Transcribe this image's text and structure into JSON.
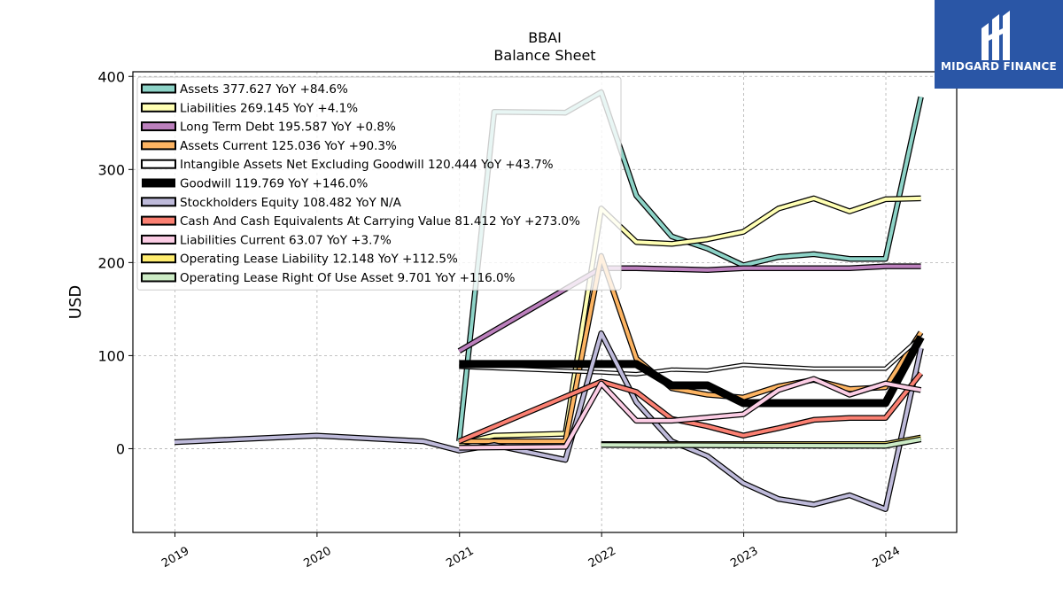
{
  "logo": {
    "text": "MIDGARD FINANCE"
  },
  "chart_data": {
    "type": "line",
    "title": "BBAI",
    "subtitle": "Balance  Sheet",
    "ylabel": "USD",
    "xlabel": "",
    "ylim": [
      -90,
      405
    ],
    "xlim": [
      "2018-09-15",
      "2024-07-01"
    ],
    "yticks": [
      0,
      100,
      200,
      300,
      400
    ],
    "xticks": [
      "2019",
      "2020",
      "2021",
      "2022",
      "2023",
      "2024"
    ],
    "grid": true,
    "legend_position": "top-left",
    "series": [
      {
        "name": "Assets  377.627 YoY +84.6%",
        "color": "#8dd3c7",
        "width": 4,
        "points": [
          [
            "2020-12-31",
            8
          ],
          [
            "2021-03-31",
            362
          ],
          [
            "2021-09-30",
            361
          ],
          [
            "2021-12-31",
            383
          ],
          [
            "2022-03-31",
            272
          ],
          [
            "2022-06-30",
            228
          ],
          [
            "2022-09-30",
            215
          ],
          [
            "2022-12-31",
            197
          ],
          [
            "2023-03-31",
            206
          ],
          [
            "2023-06-30",
            209
          ],
          [
            "2023-09-30",
            204
          ],
          [
            "2023-12-31",
            204
          ],
          [
            "2024-03-31",
            378
          ]
        ]
      },
      {
        "name": "Liabilities  269.145 YoY +4.1%",
        "color": "#ffffb3",
        "width": 4,
        "points": [
          [
            "2020-12-31",
            5
          ],
          [
            "2021-03-31",
            14
          ],
          [
            "2021-09-30",
            16
          ],
          [
            "2021-12-31",
            258
          ],
          [
            "2022-03-31",
            222
          ],
          [
            "2022-06-30",
            220
          ],
          [
            "2022-09-30",
            225
          ],
          [
            "2022-12-31",
            233
          ],
          [
            "2023-03-31",
            258
          ],
          [
            "2023-06-30",
            269
          ],
          [
            "2023-09-30",
            255
          ],
          [
            "2023-12-31",
            268
          ],
          [
            "2024-03-31",
            269
          ]
        ]
      },
      {
        "name": "Long Term Debt  195.587 YoY +0.8%",
        "color": "#bc80bd",
        "width": 4,
        "points": [
          [
            "2020-12-31",
            105
          ],
          [
            "2021-12-31",
            194
          ],
          [
            "2022-03-31",
            194
          ],
          [
            "2022-06-30",
            193
          ],
          [
            "2022-09-30",
            192
          ],
          [
            "2022-12-31",
            194
          ],
          [
            "2023-03-31",
            194
          ],
          [
            "2023-06-30",
            194
          ],
          [
            "2023-09-30",
            194
          ],
          [
            "2023-12-31",
            196
          ],
          [
            "2024-03-31",
            196
          ]
        ]
      },
      {
        "name": "Assets Current  125.036 YoY +90.3%",
        "color": "#fdb462",
        "width": 4,
        "points": [
          [
            "2020-12-31",
            8
          ],
          [
            "2021-09-30",
            8
          ],
          [
            "2021-12-31",
            207
          ],
          [
            "2022-03-31",
            97
          ],
          [
            "2022-06-30",
            65
          ],
          [
            "2022-09-30",
            58
          ],
          [
            "2022-12-31",
            55
          ],
          [
            "2023-03-31",
            67
          ],
          [
            "2023-06-30",
            74
          ],
          [
            "2023-09-30",
            64
          ],
          [
            "2023-12-31",
            66
          ],
          [
            "2024-03-31",
            125
          ]
        ]
      },
      {
        "name": "Intangible Assets Net Excluding Goodwill  120.444 YoY +43.7%",
        "color": "#ffffff",
        "width": 2.5,
        "points": [
          [
            "2020-12-31",
            88
          ],
          [
            "2021-12-31",
            82
          ],
          [
            "2022-03-31",
            80
          ],
          [
            "2022-06-30",
            85
          ],
          [
            "2022-09-30",
            84
          ],
          [
            "2022-12-31",
            90
          ],
          [
            "2023-03-31",
            88
          ],
          [
            "2023-06-30",
            86
          ],
          [
            "2023-09-30",
            86
          ],
          [
            "2023-12-31",
            86
          ],
          [
            "2024-03-31",
            120
          ]
        ]
      },
      {
        "name": "Goodwill  119.769 YoY +146.0%",
        "color": "#000000",
        "width": 9,
        "points": [
          [
            "2020-12-31",
            91
          ],
          [
            "2022-03-31",
            91
          ],
          [
            "2022-06-30",
            68
          ],
          [
            "2022-09-30",
            68
          ],
          [
            "2022-12-31",
            49
          ],
          [
            "2023-03-31",
            49
          ],
          [
            "2023-06-30",
            49
          ],
          [
            "2023-09-30",
            49
          ],
          [
            "2023-12-31",
            49
          ],
          [
            "2024-03-31",
            120
          ]
        ]
      },
      {
        "name": "Stockholders Equity  108.482 YoY N/A",
        "color": "#bebada",
        "width": 4,
        "points": [
          [
            "2018-12-31",
            7
          ],
          [
            "2019-12-31",
            14
          ],
          [
            "2020-09-30",
            8
          ],
          [
            "2020-12-31",
            -2
          ],
          [
            "2021-03-31",
            4
          ],
          [
            "2021-09-30",
            -12
          ],
          [
            "2021-12-31",
            124
          ],
          [
            "2022-03-31",
            50
          ],
          [
            "2022-06-30",
            8
          ],
          [
            "2022-09-30",
            -8
          ],
          [
            "2022-12-31",
            -37
          ],
          [
            "2023-03-31",
            -54
          ],
          [
            "2023-06-30",
            -60
          ],
          [
            "2023-09-30",
            -50
          ],
          [
            "2023-12-31",
            -65
          ],
          [
            "2024-03-31",
            108
          ]
        ]
      },
      {
        "name": "Cash And Cash Equivalents At Carrying Value  81.412 YoY +273.0%",
        "color": "#fb8072",
        "width": 4,
        "points": [
          [
            "2020-12-31",
            8
          ],
          [
            "2021-12-31",
            72
          ],
          [
            "2022-03-31",
            61
          ],
          [
            "2022-06-30",
            32
          ],
          [
            "2022-09-30",
            24
          ],
          [
            "2022-12-31",
            14
          ],
          [
            "2023-03-31",
            22
          ],
          [
            "2023-06-30",
            31
          ],
          [
            "2023-09-30",
            33
          ],
          [
            "2023-12-31",
            33
          ],
          [
            "2024-03-31",
            81
          ]
        ]
      },
      {
        "name": "Liabilities Current  63.07 YoY +3.7%",
        "color": "#fccde5",
        "width": 4,
        "points": [
          [
            "2020-12-31",
            1
          ],
          [
            "2021-09-30",
            2
          ],
          [
            "2021-12-31",
            70
          ],
          [
            "2022-03-31",
            30
          ],
          [
            "2022-06-30",
            30
          ],
          [
            "2022-12-31",
            37
          ],
          [
            "2023-03-31",
            63
          ],
          [
            "2023-06-30",
            75
          ],
          [
            "2023-09-30",
            58
          ],
          [
            "2023-12-31",
            70
          ],
          [
            "2024-03-31",
            63
          ]
        ]
      },
      {
        "name": "Operating Lease Liability  12.148 YoY +112.5%",
        "color": "#ffed6f",
        "width": 4,
        "points": [
          [
            "2021-12-31",
            5
          ],
          [
            "2023-12-31",
            5
          ],
          [
            "2024-03-31",
            12
          ]
        ]
      },
      {
        "name": "Operating Lease Right Of Use Asset  9.701 YoY +116.0%",
        "color": "#ccebc5",
        "width": 4,
        "points": [
          [
            "2021-12-31",
            4
          ],
          [
            "2023-12-31",
            3
          ],
          [
            "2024-03-31",
            10
          ]
        ]
      }
    ]
  }
}
